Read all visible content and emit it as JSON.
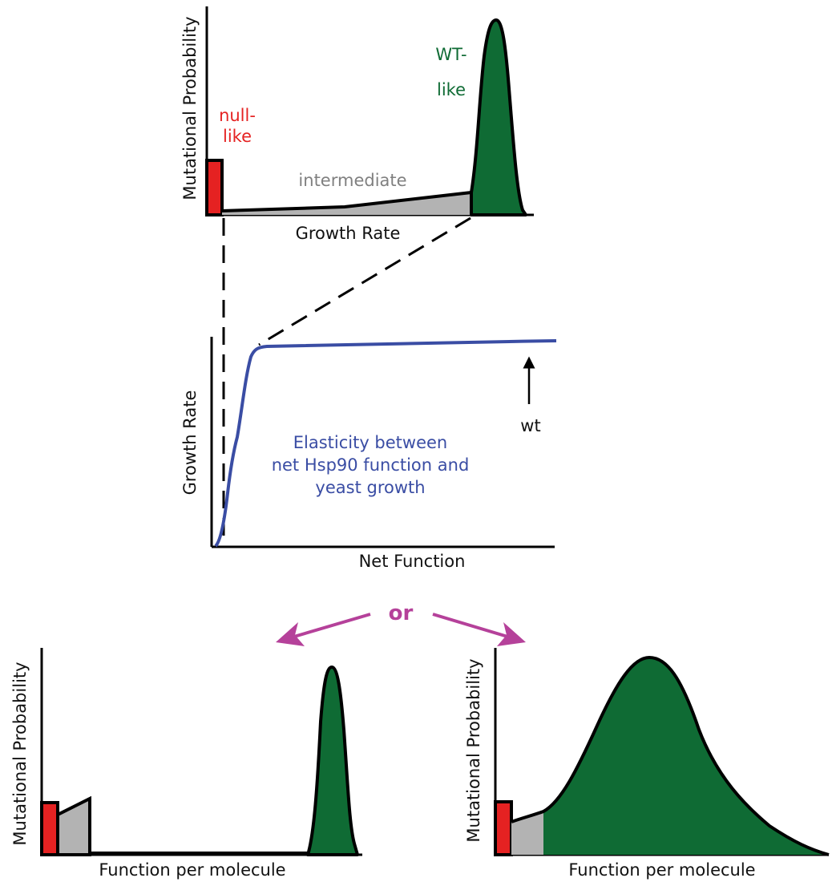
{
  "colors": {
    "null_red": "#e52222",
    "intermediate_gray": "#b3b3b3",
    "wt_green": "#0f6b34",
    "curve_blue": "#3a4da4",
    "or_magenta": "#b5419a",
    "stroke_black": "#000000",
    "label_gray": "#808080"
  },
  "top_panel": {
    "ylabel": "Mutational Probability",
    "xlabel": "Growth Rate",
    "null_label_line1": "null-",
    "null_label_line2": "like",
    "wt_label_line1": "WT-",
    "wt_label_line2": "like",
    "intermediate_label": "intermediate"
  },
  "middle_panel": {
    "ylabel": "Growth Rate",
    "xlabel": "Net Function",
    "caption_line1": "Elasticity between",
    "caption_line2": "net Hsp90 function and",
    "caption_line3": "yeast growth",
    "wt_arrow_label": "wt"
  },
  "or_label": "or",
  "bottom_left_panel": {
    "ylabel": "Mutational Probability",
    "xlabel": "Function per molecule"
  },
  "bottom_right_panel": {
    "ylabel": "Mutational Probability",
    "xlabel": "Function per molecule"
  },
  "icons": {
    "wt_arrow": "up-arrow-icon",
    "or_arrows": "split-arrows-icon"
  }
}
